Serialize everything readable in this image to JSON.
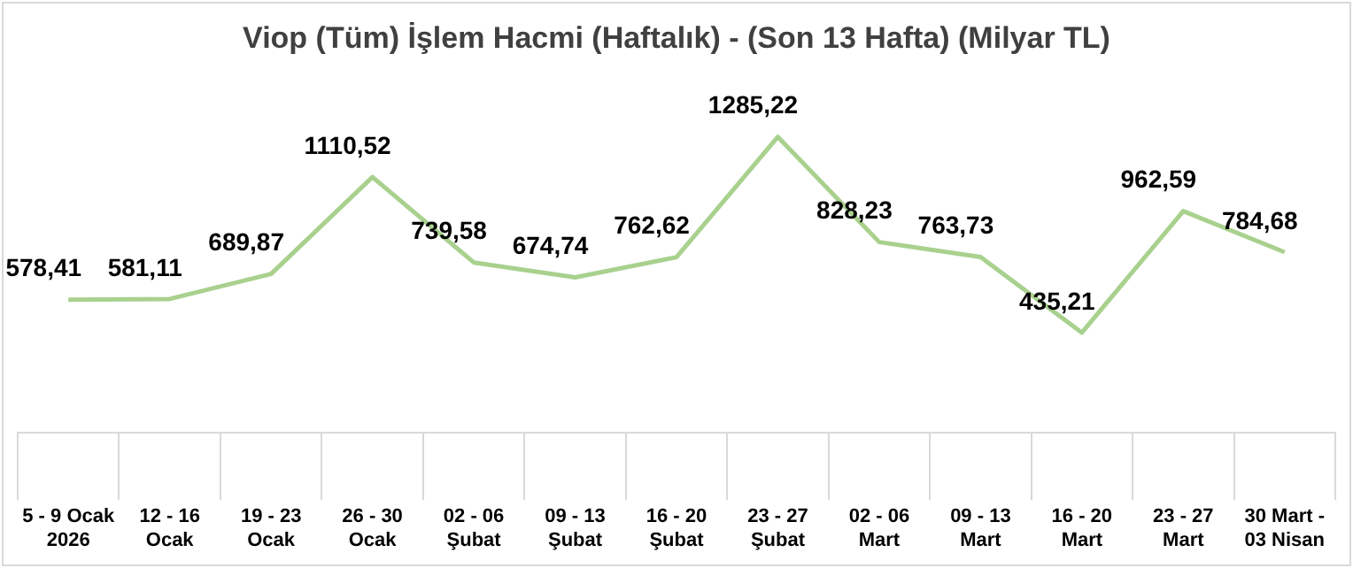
{
  "chart_data": {
    "type": "line",
    "title": "Viop (Tüm) İşlem Hacmi (Haftalık) - (Son 13 Hafta) (Milyar TL)",
    "categories": [
      "5 - 9 Ocak\n2026",
      "12 - 16\nOcak",
      "19 - 23\nOcak",
      "26 - 30\nOcak",
      "02 - 06\nŞubat",
      "09 - 13\nŞubat",
      "16 - 20\nŞubat",
      "23 - 27\nŞubat",
      "02 - 06\nMart",
      "09 - 13\nMart",
      "16 - 20\nMart",
      "23 - 27\nMart",
      "30 Mart -\n03 Nisan"
    ],
    "values": [
      578.41,
      581.11,
      689.87,
      1110.52,
      739.58,
      674.74,
      762.62,
      1285.22,
      828.23,
      763.73,
      435.21,
      962.59,
      784.68
    ],
    "value_labels": [
      "578,41",
      "581,11",
      "689,87",
      "1110,52",
      "739,58",
      "674,74",
      "762,62",
      "1285,22",
      "828,23",
      "763,73",
      "435,21",
      "962,59",
      "784,68"
    ],
    "color": "#a9d18e",
    "tick_labels": "x",
    "grid": false,
    "legend": false,
    "marker": "none",
    "line_style": "solid"
  }
}
